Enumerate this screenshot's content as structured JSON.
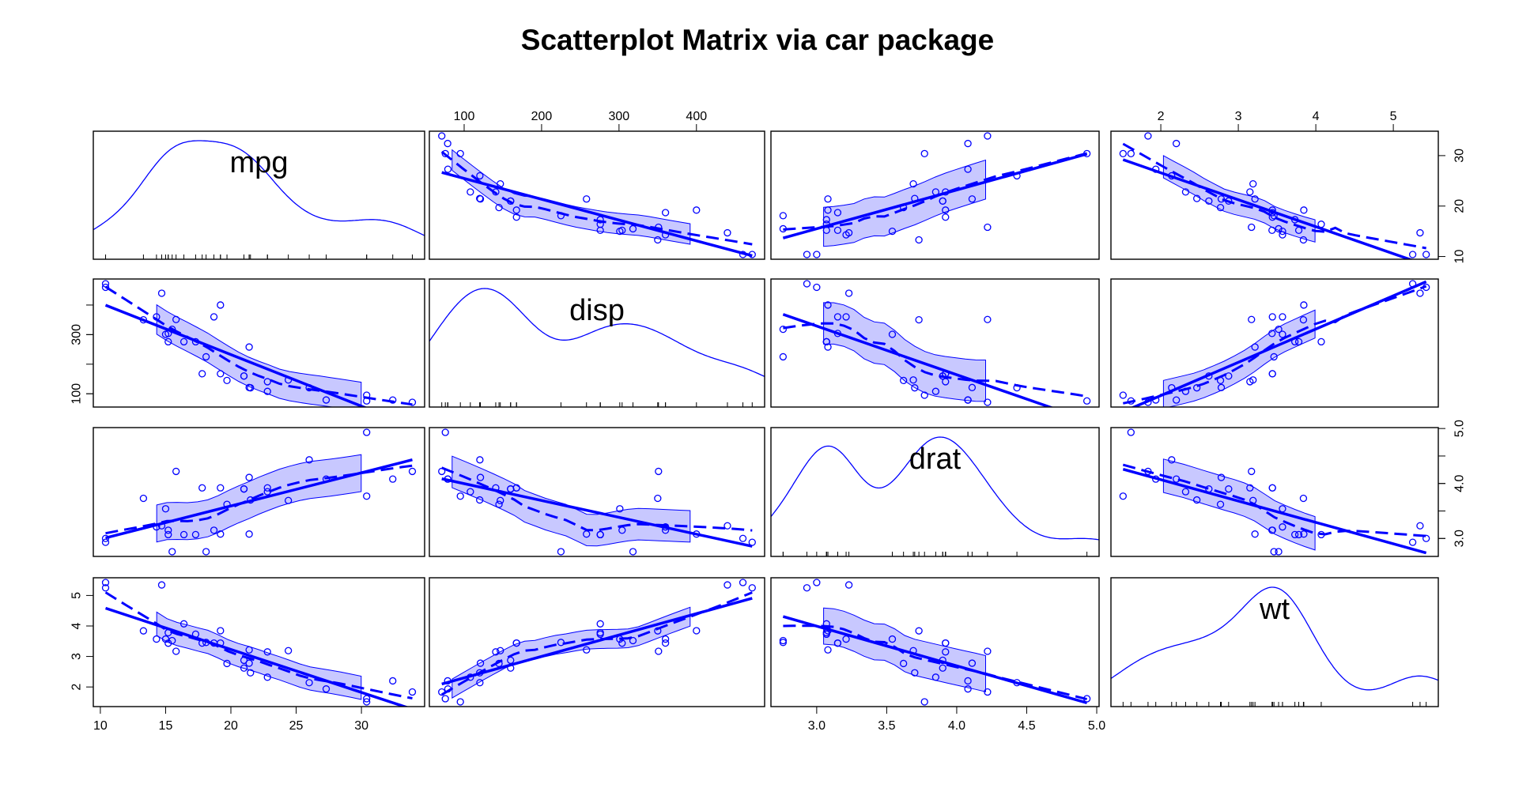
{
  "title": "Scatterplot Matrix via car package",
  "colors": {
    "series": "#0000ff",
    "band": "#c8c8ff",
    "frame": "#000000"
  },
  "chart_data": {
    "type": "scatter",
    "variables": [
      "mpg",
      "disp",
      "drat",
      "wt"
    ],
    "diagonal": "density with rug",
    "ranges": {
      "mpg": [
        10.4,
        33.9
      ],
      "disp": [
        71.1,
        472
      ],
      "drat": [
        2.76,
        4.93
      ],
      "wt": [
        1.513,
        5.424
      ]
    },
    "ticks": {
      "mpg": [
        "10",
        "15",
        "20",
        "25",
        "30"
      ],
      "disp": [
        "100",
        "200",
        "300",
        "400"
      ],
      "drat": [
        "3.0",
        "3.5",
        "4.0",
        "4.5",
        "5.0"
      ],
      "wt": [
        "2",
        "3",
        "4",
        "5"
      ]
    },
    "axis_ticks_left": {
      "mpg": [
        "10",
        "20",
        "30"
      ],
      "disp": [
        "100",
        "300"
      ],
      "drat": [
        "3.0",
        "4.0",
        "5.0"
      ],
      "wt": [
        "2",
        "3",
        "4",
        "5"
      ]
    },
    "points": [
      [
        21.0,
        160,
        3.9,
        2.62
      ],
      [
        21.0,
        160,
        3.9,
        2.875
      ],
      [
        22.8,
        108,
        3.85,
        2.32
      ],
      [
        21.4,
        258,
        3.08,
        3.215
      ],
      [
        18.7,
        360,
        3.15,
        3.44
      ],
      [
        18.1,
        225,
        2.76,
        3.46
      ],
      [
        14.3,
        360,
        3.21,
        3.57
      ],
      [
        24.4,
        146.7,
        3.69,
        3.19
      ],
      [
        22.8,
        140.8,
        3.92,
        3.15
      ],
      [
        19.2,
        167.6,
        3.92,
        3.44
      ],
      [
        17.8,
        167.6,
        3.92,
        3.44
      ],
      [
        16.4,
        275.8,
        3.07,
        4.07
      ],
      [
        17.3,
        275.8,
        3.07,
        3.73
      ],
      [
        15.2,
        275.8,
        3.07,
        3.78
      ],
      [
        10.4,
        472,
        2.93,
        5.25
      ],
      [
        10.4,
        460,
        3.0,
        5.424
      ],
      [
        14.7,
        440,
        3.23,
        5.345
      ],
      [
        32.4,
        78.7,
        4.08,
        2.2
      ],
      [
        30.4,
        75.7,
        4.93,
        1.615
      ],
      [
        33.9,
        71.1,
        4.22,
        1.835
      ],
      [
        21.5,
        120.1,
        3.7,
        2.465
      ],
      [
        15.5,
        318,
        2.76,
        3.52
      ],
      [
        15.2,
        304,
        3.15,
        3.435
      ],
      [
        13.3,
        350,
        3.73,
        3.84
      ],
      [
        19.2,
        400,
        3.08,
        3.845
      ],
      [
        27.3,
        79,
        4.08,
        1.935
      ],
      [
        26.0,
        120.3,
        4.43,
        2.14
      ],
      [
        30.4,
        95.1,
        3.77,
        1.513
      ],
      [
        15.8,
        351,
        4.22,
        3.17
      ],
      [
        19.7,
        145,
        3.62,
        2.77
      ],
      [
        15.0,
        301,
        3.54,
        3.57
      ],
      [
        21.4,
        121,
        4.11,
        2.78
      ]
    ]
  }
}
